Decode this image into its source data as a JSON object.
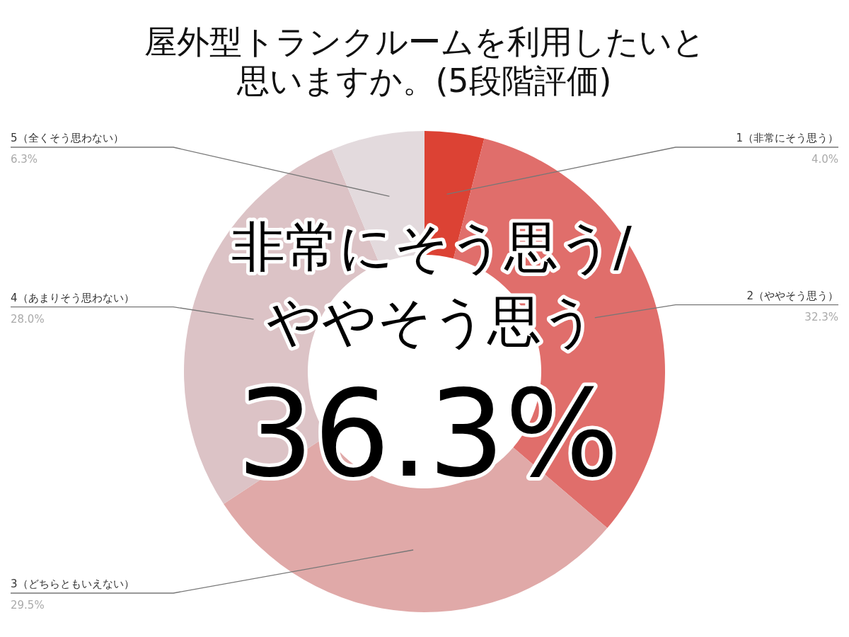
{
  "chart_data": {
    "type": "donut",
    "title": "屋外型トランクルームを利用したいと思いますか。(5段階評価)",
    "categories": [
      "1（非常にそう思う）",
      "2（ややそう思う）",
      "3（どちらともいえない）",
      "4（あまりそう思わない）",
      "5（全くそう思わない）"
    ],
    "values": [
      4.0,
      32.3,
      29.5,
      28.0,
      6.3
    ],
    "value_labels": [
      "4.0%",
      "32.3%",
      "29.5%",
      "28.0%",
      "6.3%"
    ],
    "colors": [
      "#dc4234",
      "#e06e6b",
      "#e0a9a8",
      "#dcc3c6",
      "#e3dadd"
    ],
    "annotations": [
      "非常にそう思う/ややそう思う",
      "36.3%"
    ]
  }
}
